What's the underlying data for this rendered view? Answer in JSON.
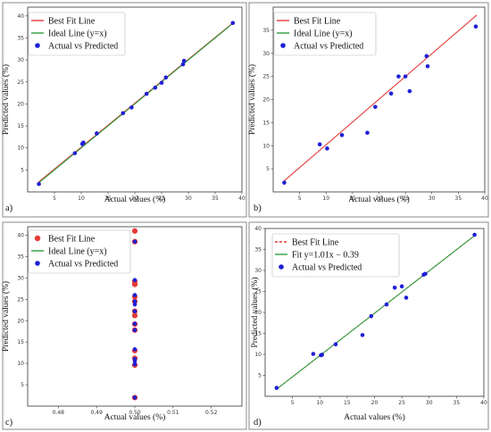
{
  "chart_data": [
    {
      "panel": "a)",
      "type": "scatter",
      "xlabel": "Actual values (%)",
      "ylabel": "Predicted values (%)",
      "xlim": [
        0,
        40
      ],
      "ylim": [
        0,
        42
      ],
      "xticks": [
        5,
        10,
        15,
        20,
        25,
        30,
        35,
        40
      ],
      "yticks": [
        5,
        10,
        15,
        20,
        25,
        30,
        35,
        40
      ],
      "grid": false,
      "legend_position": "top-left",
      "series": [
        {
          "name": "Best Fit Line",
          "kind": "line",
          "color": "#e53935",
          "x": [
            2,
            38.5
          ],
          "y": [
            2.2,
            38.6
          ]
        },
        {
          "name": "Ideal Line (y=x)",
          "kind": "line",
          "color": "#2e9e3e",
          "x": [
            2,
            38.5
          ],
          "y": [
            2,
            38.5
          ]
        },
        {
          "name": "Actual vs Predicted",
          "kind": "scatter",
          "color": "#1f1fd6",
          "x": [
            2.1,
            8.8,
            10.2,
            10.4,
            12.9,
            17.8,
            19.4,
            22.2,
            23.8,
            25.0,
            25.8,
            29.0,
            29.2,
            38.3
          ],
          "y": [
            1.8,
            8.8,
            10.9,
            11.2,
            13.3,
            17.9,
            19.2,
            22.3,
            23.7,
            24.8,
            26.0,
            29.0,
            29.8,
            38.4
          ]
        }
      ]
    },
    {
      "panel": "b)",
      "type": "scatter",
      "xlabel": "Actual values (%)",
      "ylabel": "Predicted values (%)",
      "xlim": [
        0,
        40
      ],
      "ylim": [
        0,
        40
      ],
      "xticks": [
        5,
        10,
        15,
        20,
        25,
        30,
        35,
        40
      ],
      "yticks": [
        5,
        10,
        15,
        20,
        25,
        30,
        35
      ],
      "grid": false,
      "legend_position": "top-left",
      "series": [
        {
          "name": "Best Fit Line",
          "kind": "line",
          "color": "#e53935",
          "x": [
            2,
            38.5
          ],
          "y": [
            2.3,
            38.3
          ]
        },
        {
          "name": "Ideal Line (y=x)",
          "kind": "line",
          "color": "#2e9e3e",
          "x": [],
          "y": []
        },
        {
          "name": "Actual vs Predicted",
          "kind": "scatter",
          "color": "#1f1fd6",
          "x": [
            2.1,
            8.8,
            10.2,
            13.0,
            17.8,
            19.3,
            22.3,
            23.7,
            25.0,
            25.8,
            29.0,
            29.2,
            38.3
          ],
          "y": [
            2.0,
            10.3,
            9.4,
            12.3,
            12.8,
            18.4,
            21.3,
            25.0,
            25.0,
            21.8,
            29.4,
            27.2,
            35.8
          ]
        }
      ]
    },
    {
      "panel": "c)",
      "type": "scatter",
      "xlabel": "Actual values (%)",
      "ylabel": "Predicted values (%)",
      "xlim": [
        0.472,
        0.528
      ],
      "ylim": [
        0,
        42
      ],
      "xticks": [
        0.48,
        0.49,
        0.5,
        0.51,
        0.52
      ],
      "xtick_labels": [
        "0.48",
        "0.49",
        "0.50",
        "0.51",
        "0.52"
      ],
      "yticks": [
        5,
        10,
        15,
        20,
        25,
        30,
        35,
        40
      ],
      "grid": false,
      "legend_position": "top-left",
      "series": [
        {
          "name": "Best Fit Line",
          "kind": "scatter",
          "color": "#e53935",
          "x": [
            0.5,
            0.5,
            0.5,
            0.5,
            0.5,
            0.5,
            0.5,
            0.5,
            0.5,
            0.5,
            0.5,
            0.5,
            0.5,
            0.5
          ],
          "y": [
            41,
            38.5,
            29.2,
            28.5,
            25.6,
            24.5,
            22.2,
            21.2,
            19.2,
            17.8,
            13,
            11.2,
            9.6,
            2
          ]
        },
        {
          "name": "Ideal Line (y=x)",
          "kind": "line",
          "color": "#2e9e3e",
          "x": [],
          "y": []
        },
        {
          "name": "Actual vs Predicted",
          "kind": "scatter",
          "color": "#1f1fd6",
          "x": [
            0.5,
            0.5,
            0.5,
            0.5,
            0.5,
            0.5,
            0.5,
            0.5,
            0.5,
            0.5,
            0.5,
            0.5,
            0.5
          ],
          "y": [
            38.5,
            29.5,
            26,
            24.5,
            23.8,
            22.2,
            19.3,
            17.8,
            13.3,
            11,
            10.5,
            9.8,
            2
          ]
        }
      ]
    },
    {
      "panel": "d)",
      "type": "scatter",
      "xlabel": "Actual values (%)",
      "ylabel": "Predicted values (%)",
      "xlim": [
        0,
        40
      ],
      "ylim": [
        0,
        40
      ],
      "xticks": [
        5,
        10,
        15,
        20,
        25,
        30,
        35,
        40
      ],
      "yticks": [
        5,
        10,
        15,
        20,
        25,
        30,
        35,
        40
      ],
      "grid": false,
      "legend_position": "top-left",
      "series": [
        {
          "name": "Best Fit Line",
          "kind": "dashed-line",
          "color": "#e53935",
          "x": [
            2,
            38.5
          ],
          "y": [
            1.6,
            38.5
          ]
        },
        {
          "name": "Fit y=1.01x − 0.39",
          "kind": "line",
          "color": "#2e9e3e",
          "x": [
            2,
            38.5
          ],
          "y": [
            1.6,
            38.5
          ]
        },
        {
          "name": "Actual vs Predicted",
          "kind": "scatter",
          "color": "#1f1fd6",
          "x": [
            2.1,
            8.8,
            10.2,
            10.4,
            12.9,
            17.8,
            19.4,
            22.2,
            23.7,
            25.0,
            25.8,
            29.0,
            29.3,
            38.3
          ],
          "y": [
            2.0,
            10.1,
            9.8,
            9.9,
            12.4,
            14.6,
            19.1,
            21.9,
            25.9,
            26.2,
            23.5,
            29.0,
            29.2,
            38.5
          ]
        }
      ]
    }
  ]
}
